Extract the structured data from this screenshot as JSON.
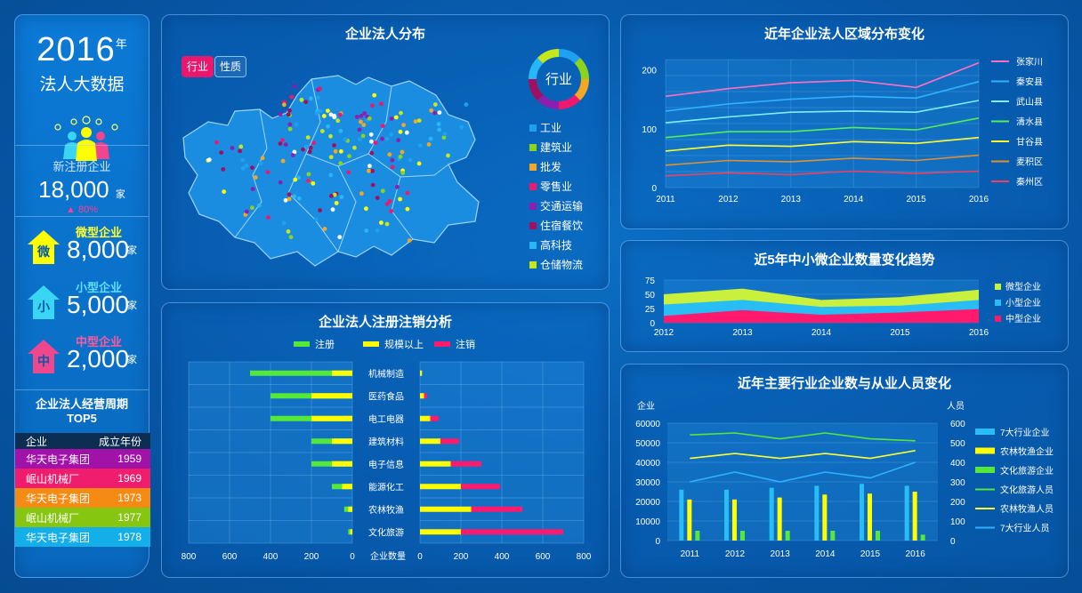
{
  "summary": {
    "year": "2016",
    "year_suffix": "年",
    "subtitle": "法人大数据",
    "new_reg_label": "新注册企业",
    "new_reg_value": "18,000",
    "new_reg_unit": "家",
    "new_reg_change": "80%",
    "sizes": [
      {
        "icon": "微",
        "label": "微型企业",
        "value": "8,000",
        "unit": "家",
        "color": "#ffff00",
        "text_color": "#ffff33"
      },
      {
        "icon": "小",
        "label": "小型企业",
        "value": "5,000",
        "unit": "家",
        "color": "#39d6f4",
        "text_color": "#5fe0ff"
      },
      {
        "icon": "中",
        "label": "中型企业",
        "value": "2,000",
        "unit": "家",
        "color": "#f0468e",
        "text_color": "#ff5aa0"
      }
    ]
  },
  "top5": {
    "title_line1": "企业法人经营周期",
    "title_line2": "TOP5",
    "header": [
      "企业",
      "成立年份"
    ],
    "rows": [
      {
        "name": "华天电子集团",
        "year": "1959",
        "color": "#a012a8"
      },
      {
        "name": "岷山机械厂",
        "year": "1969",
        "color": "#f01d6e"
      },
      {
        "name": "华天电子集团",
        "year": "1973",
        "color": "#f58b14"
      },
      {
        "name": "岷山机械厂",
        "year": "1977",
        "color": "#86c611"
      },
      {
        "name": "华天电子集团",
        "year": "1978",
        "color": "#14aee8"
      }
    ]
  },
  "map_panel": {
    "title": "企业法人分布",
    "tabs": [
      "行业",
      "性质"
    ],
    "donut_label": "行业",
    "legend": [
      {
        "label": "工业",
        "color": "#1fa1f0"
      },
      {
        "label": "建筑业",
        "color": "#8bd41b"
      },
      {
        "label": "批发",
        "color": "#f5a623"
      },
      {
        "label": "零售业",
        "color": "#f0186e"
      },
      {
        "label": "交通运输",
        "color": "#8a1fb0"
      },
      {
        "label": "住宿餐饮",
        "color": "#a01060"
      },
      {
        "label": "高科技",
        "color": "#29b6f6"
      },
      {
        "label": "仓储物流",
        "color": "#c6e81b"
      }
    ]
  },
  "reg_panel": {
    "title": "企业法人注册注销分析",
    "legend": [
      {
        "label": "注册",
        "color": "#55e83a"
      },
      {
        "label": "规模以上",
        "color": "#ffff00"
      },
      {
        "label": "注销",
        "color": "#ff1a6e"
      }
    ],
    "axis_label": "企业数量",
    "left_ticks": [
      "800",
      "600",
      "400",
      "200",
      "0"
    ],
    "right_ticks": [
      "0",
      "200",
      "400",
      "600",
      "800"
    ]
  },
  "region_panel": {
    "title": "近年企业法人区域分布变化"
  },
  "trend_panel": {
    "title": "近5年中小微企业数量变化趋势"
  },
  "industry_panel": {
    "title": "近年主要行业企业数与从业人员变化",
    "left_unit": "企业",
    "right_unit": "人员"
  },
  "chart_data": [
    {
      "type": "bar",
      "id": "register-cancel",
      "categories": [
        "机械制造",
        "医药食品",
        "电工电器",
        "建筑材料",
        "电子信息",
        "能源化工",
        "农林牧渔",
        "文化旅游"
      ],
      "series": [
        {
          "name": "注册",
          "side": "left",
          "values": [
            500,
            400,
            400,
            200,
            200,
            100,
            40,
            20
          ]
        },
        {
          "name": "规模以上",
          "side": "left-overlay",
          "values": [
            100,
            200,
            200,
            100,
            100,
            50,
            20,
            10
          ]
        },
        {
          "name": "规模以上",
          "side": "right",
          "values": [
            10,
            20,
            50,
            100,
            150,
            200,
            250,
            200
          ]
        },
        {
          "name": "注销",
          "side": "right",
          "values": [
            0,
            15,
            40,
            90,
            150,
            190,
            250,
            500
          ]
        }
      ],
      "xlabel": "企业数量",
      "xlim": [
        0,
        800
      ]
    },
    {
      "type": "line",
      "id": "region-trend",
      "x": [
        "2011",
        "2012",
        "2013",
        "2014",
        "2015",
        "2016"
      ],
      "ylim": [
        0,
        200
      ],
      "yticks": [
        0,
        100,
        200
      ],
      "series": [
        {
          "name": "张家川",
          "color": "#ff6fc0",
          "values": [
            155,
            168,
            178,
            182,
            170,
            212
          ]
        },
        {
          "name": "秦安县",
          "color": "#2fb2ff",
          "values": [
            130,
            142,
            150,
            155,
            152,
            180
          ]
        },
        {
          "name": "武山县",
          "color": "#7ff0ff",
          "values": [
            110,
            120,
            128,
            130,
            128,
            148
          ]
        },
        {
          "name": "清水县",
          "color": "#55ee55",
          "values": [
            85,
            95,
            95,
            102,
            98,
            118
          ]
        },
        {
          "name": "甘谷县",
          "color": "#ffff33",
          "values": [
            62,
            72,
            70,
            78,
            75,
            85
          ]
        },
        {
          "name": "麦积区",
          "color": "#e09030",
          "values": [
            38,
            46,
            44,
            50,
            46,
            55
          ]
        },
        {
          "name": "秦州区",
          "color": "#f04060",
          "values": [
            20,
            25,
            22,
            28,
            24,
            28
          ]
        }
      ]
    },
    {
      "type": "area",
      "id": "size-trend",
      "x": [
        "2012",
        "2013",
        "2014",
        "2015",
        "2016"
      ],
      "ylim": [
        0,
        75
      ],
      "yticks": [
        0,
        25,
        50,
        75
      ],
      "series": [
        {
          "name": "微型企业",
          "color": "#c8f03c",
          "values": [
            50,
            60,
            40,
            45,
            58
          ]
        },
        {
          "name": "小型企业",
          "color": "#29bdf5",
          "values": [
            32,
            40,
            28,
            30,
            40
          ]
        },
        {
          "name": "中型企业",
          "color": "#ff1a6e",
          "values": [
            12,
            22,
            14,
            18,
            24
          ]
        }
      ]
    },
    {
      "type": "bar",
      "id": "industry-combo",
      "categories": [
        "2011",
        "2012",
        "2013",
        "2014",
        "2015",
        "2016"
      ],
      "ylim_left": [
        0,
        60000
      ],
      "yticks_left": [
        0,
        10000,
        20000,
        30000,
        40000,
        50000,
        60000
      ],
      "ylim_right": [
        0,
        600
      ],
      "yticks_right": [
        0,
        100,
        200,
        300,
        400,
        500,
        600
      ],
      "series": [
        {
          "name": "7大行业企业",
          "kind": "bar",
          "color": "#29bdf5",
          "values": [
            26000,
            26000,
            27000,
            28000,
            29000,
            28000
          ]
        },
        {
          "name": "农林牧渔企业",
          "kind": "bar",
          "color": "#ffff00",
          "values": [
            21000,
            21000,
            22000,
            23500,
            24000,
            25000
          ]
        },
        {
          "name": "文化旅游企业",
          "kind": "bar",
          "color": "#55e83a",
          "values": [
            5000,
            5000,
            5000,
            5000,
            5000,
            3000
          ]
        },
        {
          "name": "文化旅游人员",
          "kind": "line",
          "color": "#55e83a",
          "values": [
            540,
            550,
            520,
            550,
            520,
            510
          ]
        },
        {
          "name": "农林牧渔人员",
          "kind": "line",
          "color": "#ffff33",
          "values": [
            420,
            445,
            420,
            445,
            420,
            460
          ]
        },
        {
          "name": "7大行业人员",
          "kind": "line",
          "color": "#2fb2ff",
          "values": [
            300,
            350,
            300,
            350,
            320,
            400
          ]
        }
      ]
    }
  ]
}
